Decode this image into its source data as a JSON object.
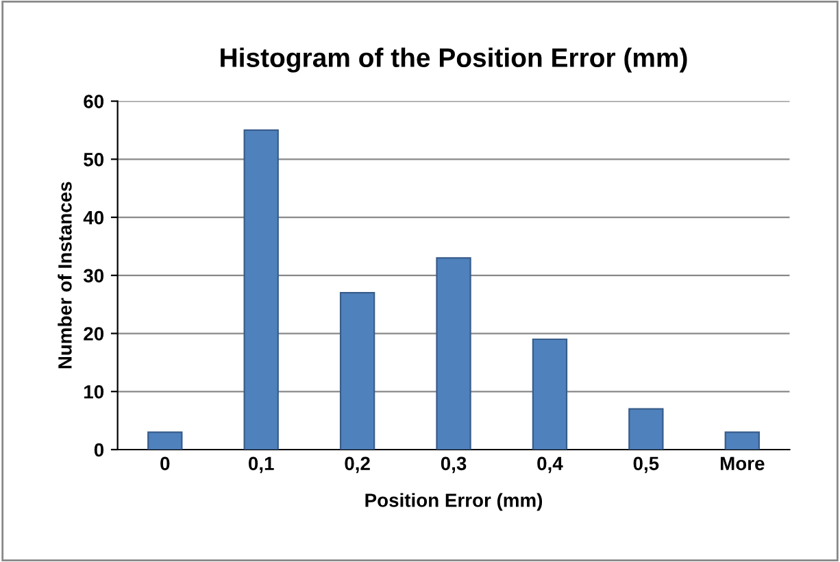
{
  "chart_data": {
    "type": "bar",
    "title": "Histogram of the Position Error (mm)",
    "xlabel": "Position Error (mm)",
    "ylabel": "Number of Instances",
    "categories": [
      "0",
      "0,1",
      "0,2",
      "0,3",
      "0,4",
      "0,5",
      "More"
    ],
    "values": [
      3,
      55,
      27,
      33,
      19,
      7,
      3
    ],
    "color": "#4f81bd",
    "ylim": [
      0,
      60
    ],
    "yticks": [
      0,
      10,
      20,
      30,
      40,
      50,
      60
    ],
    "grid": "y",
    "legend": false
  }
}
